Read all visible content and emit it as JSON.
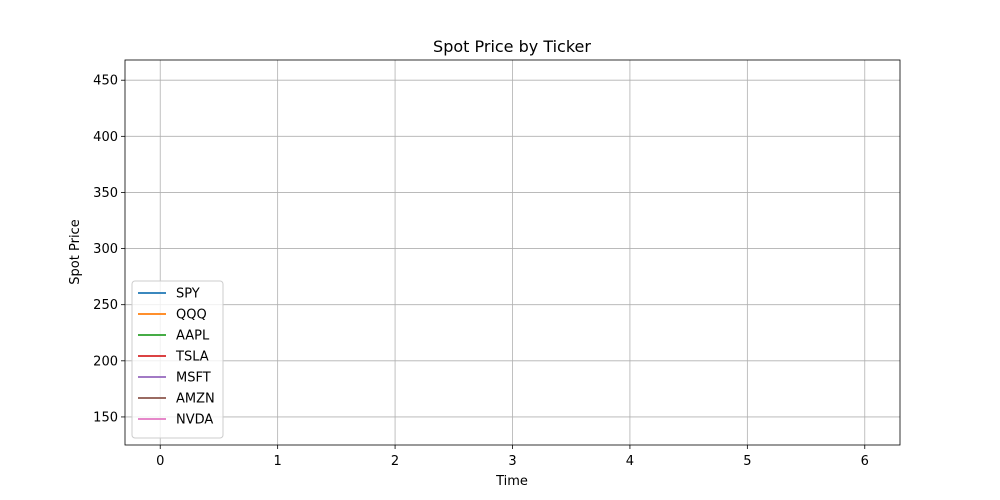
{
  "chart_data": {
    "type": "line",
    "title": "Spot Price by Ticker",
    "xlabel": "Time",
    "ylabel": "Spot Price",
    "xlim": [
      -0.3,
      6.3
    ],
    "ylim": [
      125,
      468
    ],
    "xticks": [
      0,
      1,
      2,
      3,
      4,
      5,
      6
    ],
    "yticks": [
      150,
      200,
      250,
      300,
      350,
      400,
      450
    ],
    "grid": true,
    "legend_position": "lower left",
    "series": [
      {
        "name": "SPY",
        "color": "#1f77b4",
        "x": [],
        "y": []
      },
      {
        "name": "QQQ",
        "color": "#ff7f0e",
        "x": [],
        "y": []
      },
      {
        "name": "AAPL",
        "color": "#2ca02c",
        "x": [],
        "y": []
      },
      {
        "name": "TSLA",
        "color": "#d62728",
        "x": [],
        "y": []
      },
      {
        "name": "MSFT",
        "color": "#9467bd",
        "x": [],
        "y": []
      },
      {
        "name": "AMZN",
        "color": "#8c564b",
        "x": [],
        "y": []
      },
      {
        "name": "NVDA",
        "color": "#e377c2",
        "x": [],
        "y": []
      }
    ]
  }
}
